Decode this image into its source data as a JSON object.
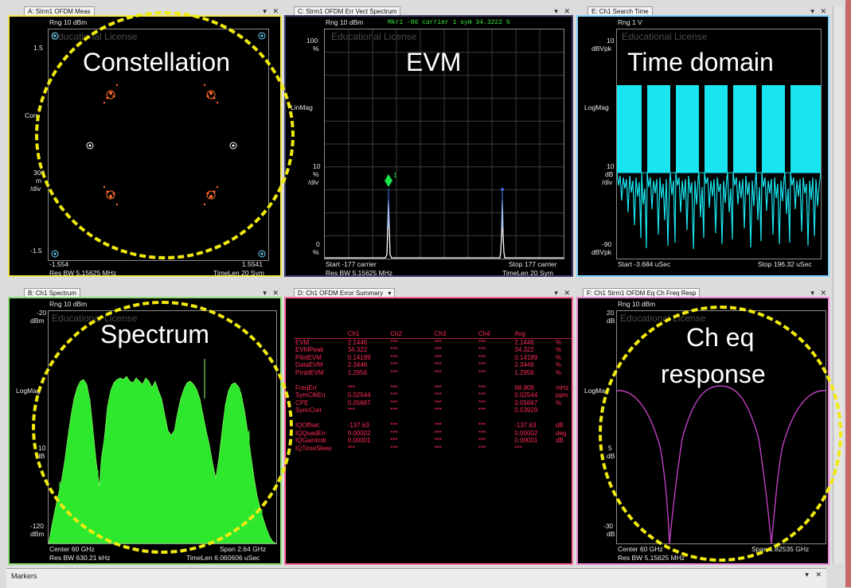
{
  "panes": {
    "a": {
      "tab": "A: Strm1 OFDM Meas",
      "rng": "Rng 10 dBm",
      "watermark": "Educational License",
      "y_top": "1.5",
      "y_mid": "Con",
      "scale_top": "300",
      "scale_mid": "m",
      "scale_unit": "/div",
      "y_bottom": "-1.5",
      "x_left": "-1.554",
      "x_right": "1.5541",
      "res_bw": "Res BW 5.15625 MHz",
      "timelen": "TimeLen 20  Sym",
      "overlay": "Constellation",
      "color": "#f2e64a"
    },
    "c": {
      "tab": "C: Strm1 OFDM Err Vect Spectrum",
      "rng": "Rng 10 dBm",
      "marker_readout": "Mkr1   -86 carrier   1 sym        34.3222  %",
      "watermark": "Educational License",
      "y_top": "100",
      "y_top_unit": "%",
      "y_mode": "LinMag",
      "y_mid": "10",
      "y_mid_unit": "%",
      "y_mid_div": "/div",
      "y_bottom": "0",
      "y_bottom_unit": "%",
      "marker_num": "1",
      "start": "Start -177  carrier",
      "stop": "Stop 177  carrier",
      "res_bw": "Res BW 5.15625 MHz",
      "timelen": "TimeLen 20  Sym",
      "overlay": "EVM",
      "color": "#3d3d6a"
    },
    "e": {
      "tab": "E: Ch1 Search Time",
      "rng": "Rng 1  V",
      "watermark": "Educational License",
      "y_top": "10",
      "y_top_unit": "dBVpk",
      "y_mode": "LogMag",
      "y_mid": "10",
      "y_mid_unit": "dB",
      "y_mid_div": "/div",
      "y_bottom": "-90",
      "y_bottom_unit": "dBVpk",
      "start": "Start -3.684  uSec",
      "stop": "Stop 196.32  uSec",
      "overlay": "Time domain",
      "color": "#7fd0ff"
    },
    "b": {
      "tab": "B: Ch1 Spectrum",
      "rng": "Rng 10 dBm",
      "watermark": "Educational License",
      "y_top": "-20",
      "y_top_unit": "dBm",
      "y_mode": "LogMag",
      "y_mid": "10",
      "y_mid_unit": "dB",
      "y_bottom": "-120",
      "y_bottom_unit": "dBm",
      "center": "Center 60  GHz",
      "span": "Span 2.64  GHz",
      "res_bw": "Res BW 630.21  kHz",
      "timelen": "TimeLen 6.060606  uSec",
      "overlay": "Spectrum",
      "color": "#8fe07a"
    },
    "d": {
      "tab": "D: Ch1 OFDM Error Summary",
      "dropdown_icon": "caret-down-icon",
      "color": "#ff6aa0",
      "columns": [
        "",
        "Ch1",
        "Ch2",
        "Ch3",
        "Ch4",
        "Avg",
        ""
      ],
      "groups": [
        [
          [
            "EVM",
            "2.1446",
            "***",
            "***",
            "***",
            "2.1446",
            "%"
          ],
          [
            "EVMPeak",
            "34.322",
            "***",
            "***",
            "***",
            "34.322",
            "%"
          ],
          [
            "PilotEVM",
            "0.14189",
            "***",
            "***",
            "***",
            "0.14189",
            "%"
          ],
          [
            "DataEVM",
            "2.3446",
            "***",
            "***",
            "***",
            "2.3446",
            "%"
          ],
          [
            "PmblEVM",
            "1.2956",
            "***",
            "***",
            "***",
            "1.2956",
            "%"
          ]
        ],
        [
          [
            "FreqErr",
            "***",
            "***",
            "***",
            "***",
            "68.909",
            "mHz"
          ],
          [
            "SymClkErr",
            "0.02544",
            "***",
            "***",
            "***",
            "0.02544",
            "ppm"
          ],
          [
            "CPE",
            "0.05667",
            "***",
            "***",
            "***",
            "0.05667",
            "%"
          ],
          [
            "SyncCorr",
            "***",
            "***",
            "***",
            "***",
            "0.53929",
            ""
          ]
        ],
        [
          [
            "IQOffset",
            "-137.63",
            "***",
            "***",
            "***",
            "-137.63",
            "dB"
          ],
          [
            "IQQuadErr",
            "0.00002",
            "***",
            "***",
            "***",
            "0.00002",
            "deg"
          ],
          [
            "IQGainImb",
            "0.00001",
            "***",
            "***",
            "***",
            "0.00001",
            "dB"
          ],
          [
            "IQTimeSkew",
            "***",
            "***",
            "***",
            "***",
            "***",
            ""
          ]
        ]
      ]
    },
    "f": {
      "tab": "F: Ch1 Strm1 OFDM Eq Ch Freq Resp",
      "rng": "Rng 10 dBm",
      "watermark": "Educational License",
      "y_top": "20",
      "y_top_unit": "dB",
      "y_mode": "LogMag",
      "y_mid": "5",
      "y_mid_unit": "dB",
      "y_bottom": "-30",
      "y_bottom_unit": "dB",
      "center": "Center 60 GHz",
      "span": "Span 1.82535 GHz",
      "res_bw": "Res BW 5.15625 MHz",
      "overlay_line1": "Ch eq",
      "overlay_line2": "response",
      "color": "#f08ad8"
    }
  },
  "controls": {
    "minimize": "▾",
    "close": "✕"
  },
  "markers": {
    "title": "Markers"
  }
}
